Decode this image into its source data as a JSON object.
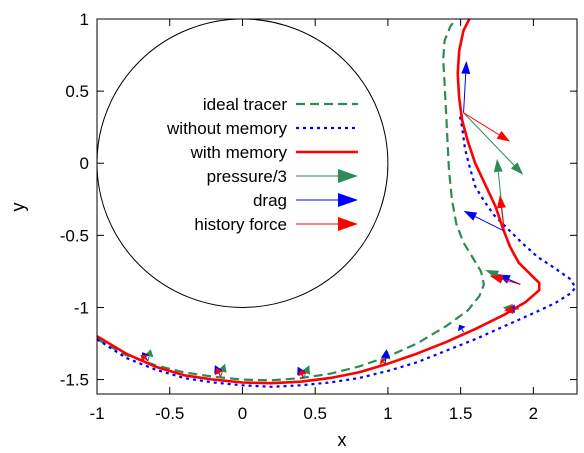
{
  "chart_data": {
    "type": "line",
    "title": "",
    "xlabel": "x",
    "ylabel": "y",
    "xlim": [
      -1,
      2.3
    ],
    "ylim": [
      -1.6,
      1
    ],
    "xticks": [
      "-1",
      "-0.5",
      "0",
      "0.5",
      "1",
      "1.5",
      "2"
    ],
    "yticks": [
      "1",
      "0.5",
      "0",
      "-0.5",
      "-1",
      "-1.5"
    ],
    "xtick_values": [
      -1,
      -0.5,
      0,
      0.5,
      1,
      1.5,
      2
    ],
    "ytick_values": [
      1,
      0.5,
      0,
      -0.5,
      -1,
      -1.5
    ],
    "grid": false,
    "legend_position": "inside-left",
    "obstacle": {
      "shape": "circle",
      "center": [
        0,
        0
      ],
      "radius": 1
    },
    "series": [
      {
        "name": "ideal tracer",
        "style": "dashed",
        "color": "#2e8b57",
        "points": [
          [
            -1,
            -1.22
          ],
          [
            -0.8,
            -1.33
          ],
          [
            -0.6,
            -1.4
          ],
          [
            -0.4,
            -1.45
          ],
          [
            -0.2,
            -1.48
          ],
          [
            0,
            -1.5
          ],
          [
            0.2,
            -1.505
          ],
          [
            0.4,
            -1.49
          ],
          [
            0.6,
            -1.46
          ],
          [
            0.8,
            -1.41
          ],
          [
            1.0,
            -1.34
          ],
          [
            1.2,
            -1.25
          ],
          [
            1.4,
            -1.13
          ],
          [
            1.55,
            -1.02
          ],
          [
            1.63,
            -0.92
          ],
          [
            1.66,
            -0.84
          ],
          [
            1.64,
            -0.75
          ],
          [
            1.58,
            -0.65
          ],
          [
            1.52,
            -0.55
          ],
          [
            1.47,
            -0.42
          ],
          [
            1.44,
            -0.25
          ],
          [
            1.42,
            -0.05
          ],
          [
            1.41,
            0.15
          ],
          [
            1.4,
            0.35
          ],
          [
            1.39,
            0.55
          ],
          [
            1.38,
            0.72
          ],
          [
            1.39,
            0.85
          ],
          [
            1.43,
            0.95
          ],
          [
            1.47,
            1.0
          ]
        ]
      },
      {
        "name": "without memory",
        "style": "dotted",
        "color": "#0000ff",
        "points": [
          [
            -1,
            -1.22
          ],
          [
            -0.8,
            -1.35
          ],
          [
            -0.6,
            -1.43
          ],
          [
            -0.4,
            -1.49
          ],
          [
            -0.2,
            -1.52
          ],
          [
            0,
            -1.54
          ],
          [
            0.2,
            -1.55
          ],
          [
            0.4,
            -1.54
          ],
          [
            0.6,
            -1.52
          ],
          [
            0.8,
            -1.49
          ],
          [
            1.0,
            -1.44
          ],
          [
            1.2,
            -1.38
          ],
          [
            1.4,
            -1.3
          ],
          [
            1.6,
            -1.22
          ],
          [
            1.8,
            -1.13
          ],
          [
            2.0,
            -1.04
          ],
          [
            2.15,
            -0.97
          ],
          [
            2.26,
            -0.9
          ],
          [
            2.29,
            -0.86
          ],
          [
            2.25,
            -0.8
          ],
          [
            2.15,
            -0.73
          ],
          [
            2.03,
            -0.65
          ],
          [
            1.92,
            -0.55
          ],
          [
            1.83,
            -0.46
          ],
          [
            1.73,
            -0.36
          ],
          [
            1.66,
            -0.26
          ],
          [
            1.6,
            -0.16
          ],
          [
            1.56,
            -0.02
          ],
          [
            1.53,
            0.1
          ],
          [
            1.51,
            0.25
          ],
          [
            1.49,
            0.35
          ]
        ]
      },
      {
        "name": "with memory",
        "style": "solid",
        "color": "#ff0000",
        "points": [
          [
            -1,
            -1.2
          ],
          [
            -0.8,
            -1.32
          ],
          [
            -0.6,
            -1.41
          ],
          [
            -0.4,
            -1.47
          ],
          [
            -0.2,
            -1.5
          ],
          [
            0,
            -1.52
          ],
          [
            0.2,
            -1.525
          ],
          [
            0.4,
            -1.515
          ],
          [
            0.6,
            -1.49
          ],
          [
            0.8,
            -1.45
          ],
          [
            1.0,
            -1.39
          ],
          [
            1.2,
            -1.32
          ],
          [
            1.4,
            -1.24
          ],
          [
            1.6,
            -1.15
          ],
          [
            1.8,
            -1.05
          ],
          [
            1.95,
            -0.96
          ],
          [
            2.04,
            -0.88
          ],
          [
            2.04,
            -0.83
          ],
          [
            1.98,
            -0.77
          ],
          [
            1.9,
            -0.69
          ],
          [
            1.84,
            -0.58
          ],
          [
            1.79,
            -0.45
          ],
          [
            1.74,
            -0.3
          ],
          [
            1.67,
            -0.15
          ],
          [
            1.6,
            0.0
          ],
          [
            1.55,
            0.15
          ],
          [
            1.51,
            0.3
          ],
          [
            1.49,
            0.45
          ],
          [
            1.48,
            0.62
          ],
          [
            1.49,
            0.78
          ],
          [
            1.52,
            0.92
          ],
          [
            1.56,
            1.0
          ]
        ]
      }
    ],
    "arrows": [
      {
        "kind": "pressure/3",
        "color": "#2e8b57",
        "from": [
          -0.65,
          -1.37
        ],
        "to": [
          -0.63,
          -1.29
        ]
      },
      {
        "kind": "drag",
        "color": "#0000ff",
        "from": [
          -0.65,
          -1.37
        ],
        "to": [
          -0.69,
          -1.31
        ]
      },
      {
        "kind": "history force",
        "color": "#ff0000",
        "from": [
          -0.65,
          -1.37
        ],
        "to": [
          -0.7,
          -1.33
        ]
      },
      {
        "kind": "pressure/3",
        "color": "#2e8b57",
        "from": [
          -0.15,
          -1.48
        ],
        "to": [
          -0.12,
          -1.39
        ]
      },
      {
        "kind": "drag",
        "color": "#0000ff",
        "from": [
          -0.15,
          -1.48
        ],
        "to": [
          -0.19,
          -1.4
        ]
      },
      {
        "kind": "history force",
        "color": "#ff0000",
        "from": [
          -0.15,
          -1.48
        ],
        "to": [
          -0.18,
          -1.42
        ]
      },
      {
        "kind": "pressure/3",
        "color": "#2e8b57",
        "from": [
          0.42,
          -1.49
        ],
        "to": [
          0.46,
          -1.4
        ]
      },
      {
        "kind": "drag",
        "color": "#0000ff",
        "from": [
          0.42,
          -1.49
        ],
        "to": [
          0.38,
          -1.41
        ]
      },
      {
        "kind": "history force",
        "color": "#ff0000",
        "from": [
          0.42,
          -1.49
        ],
        "to": [
          0.4,
          -1.43
        ]
      },
      {
        "kind": "pressure/3",
        "color": "#2e8b57",
        "from": [
          0.98,
          -1.39
        ],
        "to": [
          1.0,
          -1.3
        ]
      },
      {
        "kind": "drag",
        "color": "#0000ff",
        "from": [
          0.98,
          -1.39
        ],
        "to": [
          0.99,
          -1.29
        ]
      },
      {
        "kind": "history force",
        "color": "#ff0000",
        "from": [
          0.98,
          -1.39
        ],
        "to": [
          0.95,
          -1.36
        ]
      },
      {
        "kind": "drag",
        "color": "#0000ff",
        "from": [
          1.52,
          -1.17
        ],
        "to": [
          1.49,
          -1.12
        ]
      },
      {
        "kind": "pressure/3",
        "color": "#2e8b57",
        "from": [
          1.9,
          -1.01
        ],
        "to": [
          1.79,
          -1.0
        ]
      },
      {
        "kind": "drag",
        "color": "#0000ff",
        "from": [
          1.9,
          -1.01
        ],
        "to": [
          1.83,
          -1.01
        ]
      },
      {
        "kind": "history force",
        "color": "#ff0000",
        "from": [
          1.9,
          -1.01
        ],
        "to": [
          1.8,
          -1.02
        ]
      },
      {
        "kind": "pressure/3",
        "color": "#2e8b57",
        "from": [
          1.91,
          -0.84
        ],
        "to": [
          1.67,
          -0.74
        ]
      },
      {
        "kind": "drag",
        "color": "#0000ff",
        "from": [
          1.91,
          -0.84
        ],
        "to": [
          1.75,
          -0.77
        ]
      },
      {
        "kind": "history force",
        "color": "#ff0000",
        "from": [
          1.91,
          -0.84
        ],
        "to": [
          1.7,
          -0.78
        ]
      },
      {
        "kind": "pressure/3",
        "color": "#2e8b57",
        "from": [
          1.8,
          -0.47
        ],
        "to": [
          1.75,
          0.03
        ]
      },
      {
        "kind": "drag",
        "color": "#0000ff",
        "from": [
          1.8,
          -0.47
        ],
        "to": [
          1.52,
          -0.33
        ]
      },
      {
        "kind": "history force",
        "color": "#ff0000",
        "from": [
          1.8,
          -0.47
        ],
        "to": [
          1.77,
          -0.22
        ]
      },
      {
        "kind": "pressure/3",
        "color": "#2e8b57",
        "from": [
          1.52,
          0.35
        ],
        "to": [
          1.93,
          -0.08
        ]
      },
      {
        "kind": "drag",
        "color": "#0000ff",
        "from": [
          1.52,
          0.35
        ],
        "to": [
          1.54,
          0.71
        ]
      },
      {
        "kind": "history force",
        "color": "#ff0000",
        "from": [
          1.52,
          0.35
        ],
        "to": [
          1.84,
          0.15
        ]
      }
    ]
  },
  "legend": [
    {
      "label": "ideal tracer",
      "kind": "line",
      "style": "dashed",
      "color": "#2e8b57"
    },
    {
      "label": "without memory",
      "kind": "line",
      "style": "dotted",
      "color": "#0000ff"
    },
    {
      "label": "with memory",
      "kind": "line",
      "style": "solid",
      "color": "#ff0000"
    },
    {
      "label": "pressure/3",
      "kind": "arrow",
      "color": "#2e8b57"
    },
    {
      "label": "drag",
      "kind": "arrow",
      "color": "#0000ff"
    },
    {
      "label": "history force",
      "kind": "arrow",
      "color": "#ff0000"
    }
  ]
}
